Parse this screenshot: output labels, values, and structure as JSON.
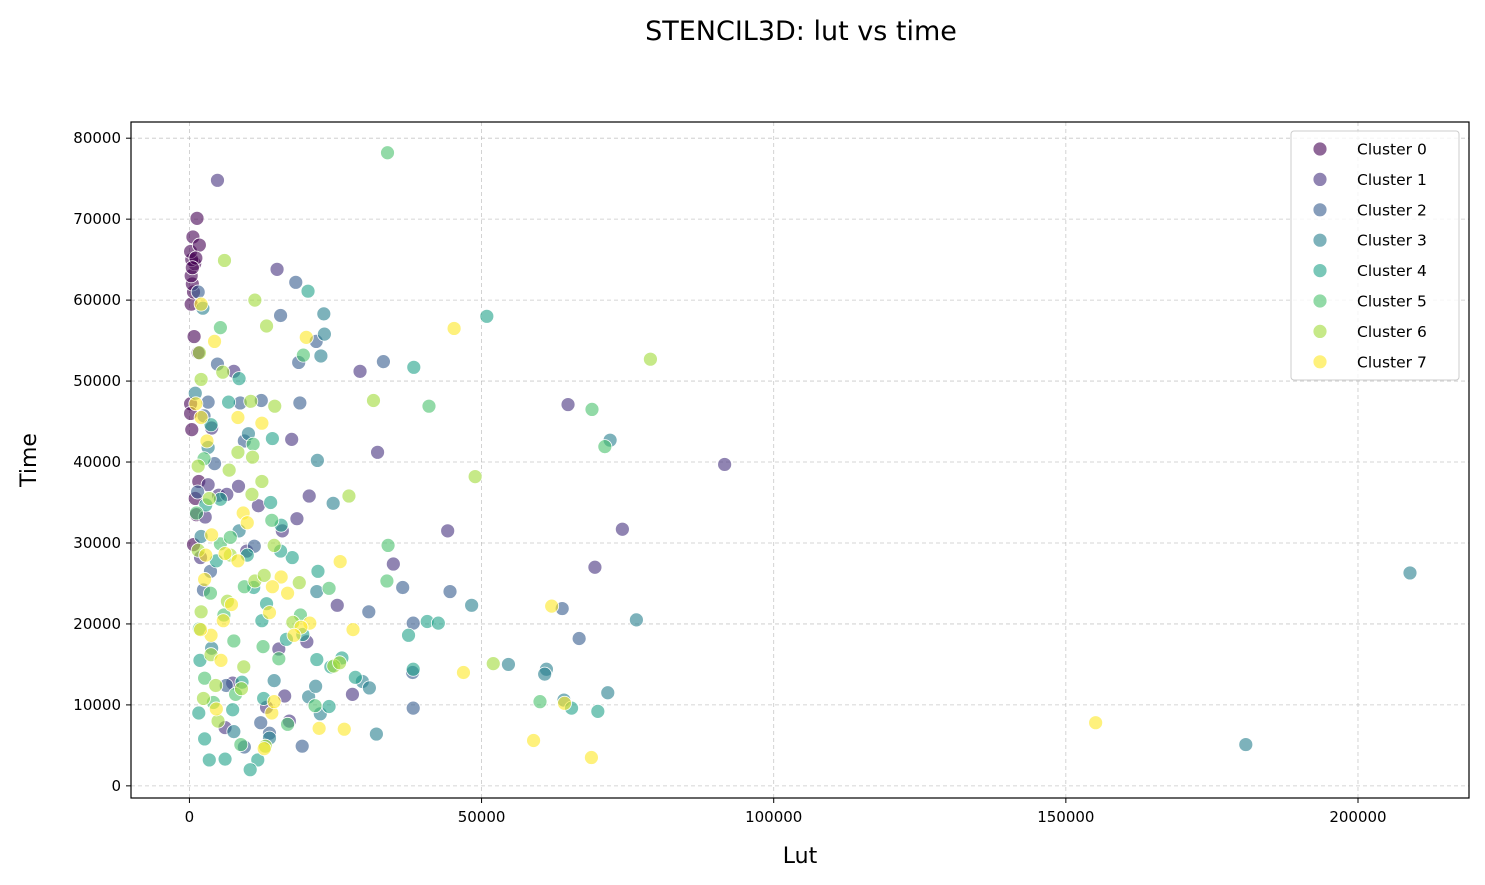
{
  "chart_data": {
    "type": "scatter",
    "title": "STENCIL3D: lut vs time",
    "xlabel": "Lut",
    "ylabel": "Time",
    "xlim": [
      -10000,
      219000
    ],
    "ylim": [
      -1500,
      82000
    ],
    "xticks": [
      0,
      50000,
      100000,
      150000,
      200000
    ],
    "yticks": [
      0,
      10000,
      20000,
      30000,
      40000,
      50000,
      60000,
      70000,
      80000
    ],
    "xtick_labels": [
      "0",
      "50000",
      "100000",
      "150000",
      "200000"
    ],
    "ytick_labels": [
      "0",
      "10000",
      "20000",
      "30000",
      "40000",
      "50000",
      "60000",
      "70000",
      "80000"
    ],
    "grid": true,
    "legend_position": "top-right",
    "series": [
      {
        "name": "Cluster 0",
        "color": "#440154",
        "points": [
          [
            300,
            59500
          ],
          [
            700,
            61000
          ],
          [
            500,
            62000
          ],
          [
            300,
            63000
          ],
          [
            900,
            64500
          ],
          [
            400,
            65000
          ],
          [
            200,
            66000
          ],
          [
            600,
            67800
          ],
          [
            1300,
            70100
          ],
          [
            1700,
            66800
          ],
          [
            800,
            55500
          ],
          [
            200,
            47200
          ],
          [
            400,
            44000
          ],
          [
            1500,
            53500
          ],
          [
            200,
            46000
          ],
          [
            1000,
            35500
          ],
          [
            1600,
            37600
          ],
          [
            1200,
            33500
          ],
          [
            700,
            29800
          ],
          [
            1100,
            65200
          ],
          [
            500,
            64000
          ]
        ]
      },
      {
        "name": "Cluster 1",
        "color": "#46327e",
        "points": [
          [
            4800,
            74800
          ],
          [
            15000,
            63800
          ],
          [
            3800,
            44200
          ],
          [
            7600,
            51200
          ],
          [
            29200,
            51200
          ],
          [
            17500,
            42800
          ],
          [
            32200,
            41200
          ],
          [
            64800,
            47100
          ],
          [
            91600,
            39700
          ],
          [
            74100,
            31700
          ],
          [
            69400,
            27000
          ],
          [
            44200,
            31500
          ],
          [
            34900,
            27400
          ],
          [
            20500,
            35800
          ],
          [
            25300,
            22300
          ],
          [
            27900,
            11300
          ],
          [
            15900,
            31500
          ],
          [
            18400,
            33000
          ],
          [
            11800,
            34600
          ],
          [
            3200,
            37200
          ],
          [
            5000,
            35900
          ],
          [
            6400,
            36000
          ],
          [
            2700,
            33200
          ],
          [
            8400,
            37000
          ],
          [
            20100,
            17800
          ],
          [
            16300,
            11100
          ],
          [
            17100,
            8000
          ],
          [
            15300,
            16900
          ],
          [
            9800,
            29000
          ],
          [
            13200,
            9700
          ],
          [
            7400,
            12700
          ],
          [
            6100,
            7200
          ],
          [
            1900,
            28200
          ]
        ]
      },
      {
        "name": "Cluster 2",
        "color": "#365c8d",
        "points": [
          [
            15600,
            58100
          ],
          [
            18200,
            62200
          ],
          [
            1500,
            61000
          ],
          [
            4800,
            52100
          ],
          [
            18700,
            52300
          ],
          [
            21700,
            54900
          ],
          [
            33200,
            52400
          ],
          [
            8700,
            47300
          ],
          [
            12300,
            47600
          ],
          [
            18900,
            47300
          ],
          [
            3200,
            47400
          ],
          [
            2500,
            45700
          ],
          [
            9400,
            42600
          ],
          [
            44600,
            24000
          ],
          [
            36500,
            24500
          ],
          [
            30700,
            21500
          ],
          [
            38300,
            20100
          ],
          [
            63800,
            21900
          ],
          [
            66700,
            18200
          ],
          [
            38200,
            14000
          ],
          [
            38300,
            9600
          ],
          [
            19300,
            4900
          ],
          [
            9400,
            4800
          ],
          [
            13700,
            6500
          ],
          [
            12200,
            7800
          ],
          [
            6300,
            12400
          ],
          [
            2400,
            24200
          ],
          [
            3600,
            26500
          ],
          [
            11100,
            29600
          ],
          [
            1400,
            36300
          ],
          [
            4300,
            39800
          ]
        ]
      },
      {
        "name": "Cluster 3",
        "color": "#277f8e",
        "points": [
          [
            2300,
            59000
          ],
          [
            23000,
            58300
          ],
          [
            23100,
            55800
          ],
          [
            22500,
            53100
          ],
          [
            10100,
            43500
          ],
          [
            21900,
            40200
          ],
          [
            24600,
            34900
          ],
          [
            72000,
            42700
          ],
          [
            48300,
            22300
          ],
          [
            76500,
            20500
          ],
          [
            61100,
            14400
          ],
          [
            60800,
            13800
          ],
          [
            54600,
            15000
          ],
          [
            64100,
            10600
          ],
          [
            71600,
            11500
          ],
          [
            29600,
            12900
          ],
          [
            30800,
            12100
          ],
          [
            32000,
            6400
          ],
          [
            22400,
            8900
          ],
          [
            208900,
            26300
          ],
          [
            180800,
            5100
          ],
          [
            20400,
            11000
          ],
          [
            13700,
            5900
          ],
          [
            7600,
            6700
          ],
          [
            3800,
            17000
          ],
          [
            2000,
            30800
          ],
          [
            8500,
            31500
          ],
          [
            21600,
            12300
          ],
          [
            21800,
            24000
          ],
          [
            14500,
            13000
          ],
          [
            3200,
            41800
          ],
          [
            1000,
            48500
          ]
        ]
      },
      {
        "name": "Cluster 4",
        "color": "#1fa188",
        "points": [
          [
            20300,
            61100
          ],
          [
            50900,
            58000
          ],
          [
            38400,
            51700
          ],
          [
            40700,
            20300
          ],
          [
            42600,
            20100
          ],
          [
            37500,
            18600
          ],
          [
            38300,
            14400
          ],
          [
            65400,
            9600
          ],
          [
            69900,
            9200
          ],
          [
            14200,
            42900
          ],
          [
            8500,
            50300
          ],
          [
            6700,
            47400
          ],
          [
            3700,
            44600
          ],
          [
            5300,
            35400
          ],
          [
            13900,
            35000
          ],
          [
            15700,
            32200
          ],
          [
            9900,
            28500
          ],
          [
            11000,
            24500
          ],
          [
            13200,
            22500
          ],
          [
            22000,
            26500
          ],
          [
            17600,
            28200
          ],
          [
            15600,
            29000
          ],
          [
            16600,
            18100
          ],
          [
            19400,
            18700
          ],
          [
            26100,
            15800
          ],
          [
            24200,
            14700
          ],
          [
            28400,
            13400
          ],
          [
            23900,
            9800
          ],
          [
            21800,
            15600
          ],
          [
            11700,
            3200
          ],
          [
            10400,
            2000
          ],
          [
            6100,
            3300
          ],
          [
            3400,
            3200
          ],
          [
            2600,
            5800
          ],
          [
            7400,
            9400
          ],
          [
            12700,
            10800
          ],
          [
            9000,
            12800
          ],
          [
            1800,
            15500
          ],
          [
            1600,
            9000
          ],
          [
            12400,
            20400
          ],
          [
            4600,
            27800
          ],
          [
            2800,
            34700
          ]
        ]
      },
      {
        "name": "Cluster 5",
        "color": "#4ac16d",
        "points": [
          [
            33900,
            78200
          ],
          [
            5300,
            56600
          ],
          [
            68900,
            46500
          ],
          [
            71100,
            41900
          ],
          [
            41000,
            46900
          ],
          [
            34000,
            29700
          ],
          [
            19500,
            53200
          ],
          [
            33800,
            25300
          ],
          [
            2500,
            40400
          ],
          [
            5300,
            29900
          ],
          [
            14100,
            32800
          ],
          [
            9400,
            24600
          ],
          [
            23900,
            24400
          ],
          [
            19000,
            21100
          ],
          [
            4100,
            10300
          ],
          [
            7900,
            11300
          ],
          [
            12600,
            17200
          ],
          [
            1700,
            19400
          ],
          [
            2600,
            13300
          ],
          [
            7600,
            17900
          ],
          [
            15300,
            15700
          ],
          [
            5900,
            21100
          ],
          [
            16800,
            7600
          ],
          [
            8800,
            5100
          ],
          [
            21500,
            9900
          ],
          [
            3600,
            23800
          ],
          [
            7000,
            30700
          ],
          [
            1200,
            33700
          ],
          [
            10900,
            42200
          ],
          [
            60000,
            10400
          ]
        ]
      },
      {
        "name": "Cluster 6",
        "color": "#a0da39",
        "points": [
          [
            6000,
            64900
          ],
          [
            11200,
            60000
          ],
          [
            13200,
            56800
          ],
          [
            1700,
            53500
          ],
          [
            2000,
            50200
          ],
          [
            5700,
            51100
          ],
          [
            78900,
            52700
          ],
          [
            31500,
            47600
          ],
          [
            48900,
            38200
          ],
          [
            27300,
            35800
          ],
          [
            52000,
            15100
          ],
          [
            14600,
            46900
          ],
          [
            10500,
            47500
          ],
          [
            1500,
            39500
          ],
          [
            6800,
            39000
          ],
          [
            8300,
            41200
          ],
          [
            10800,
            40600
          ],
          [
            12400,
            37600
          ],
          [
            10700,
            36000
          ],
          [
            14500,
            29700
          ],
          [
            7000,
            28500
          ],
          [
            11200,
            25300
          ],
          [
            12800,
            26000
          ],
          [
            18800,
            25100
          ],
          [
            17700,
            20200
          ],
          [
            24700,
            14800
          ],
          [
            25700,
            15200
          ],
          [
            9300,
            14700
          ],
          [
            4500,
            12400
          ],
          [
            2400,
            10800
          ],
          [
            4900,
            8000
          ],
          [
            3700,
            16200
          ],
          [
            2000,
            21500
          ],
          [
            6500,
            22800
          ],
          [
            13000,
            4900
          ],
          [
            8900,
            12000
          ],
          [
            1500,
            29100
          ],
          [
            3400,
            35500
          ]
        ]
      },
      {
        "name": "Cluster 7",
        "color": "#fde725",
        "points": [
          [
            2000,
            59500
          ],
          [
            4300,
            54900
          ],
          [
            20000,
            55400
          ],
          [
            45300,
            56500
          ],
          [
            1100,
            47200
          ],
          [
            2000,
            45500
          ],
          [
            8300,
            45500
          ],
          [
            12400,
            44800
          ],
          [
            3000,
            42600
          ],
          [
            9200,
            33700
          ],
          [
            2800,
            28500
          ],
          [
            6100,
            28700
          ],
          [
            8300,
            27800
          ],
          [
            9900,
            32500
          ],
          [
            25800,
            27700
          ],
          [
            15700,
            25800
          ],
          [
            14200,
            24600
          ],
          [
            16800,
            23800
          ],
          [
            7200,
            22400
          ],
          [
            5800,
            20400
          ],
          [
            20600,
            20100
          ],
          [
            19100,
            19600
          ],
          [
            17900,
            18600
          ],
          [
            13700,
            21400
          ],
          [
            3700,
            18600
          ],
          [
            1900,
            19300
          ],
          [
            5400,
            15500
          ],
          [
            28000,
            19300
          ],
          [
            62000,
            22200
          ],
          [
            46900,
            14000
          ],
          [
            64200,
            10200
          ],
          [
            12800,
            4600
          ],
          [
            14100,
            9000
          ],
          [
            14500,
            10400
          ],
          [
            22200,
            7100
          ],
          [
            26500,
            7000
          ],
          [
            58900,
            5600
          ],
          [
            68800,
            3500
          ],
          [
            155100,
            7800
          ],
          [
            4600,
            9500
          ],
          [
            2600,
            25500
          ],
          [
            3800,
            31000
          ]
        ]
      }
    ]
  }
}
